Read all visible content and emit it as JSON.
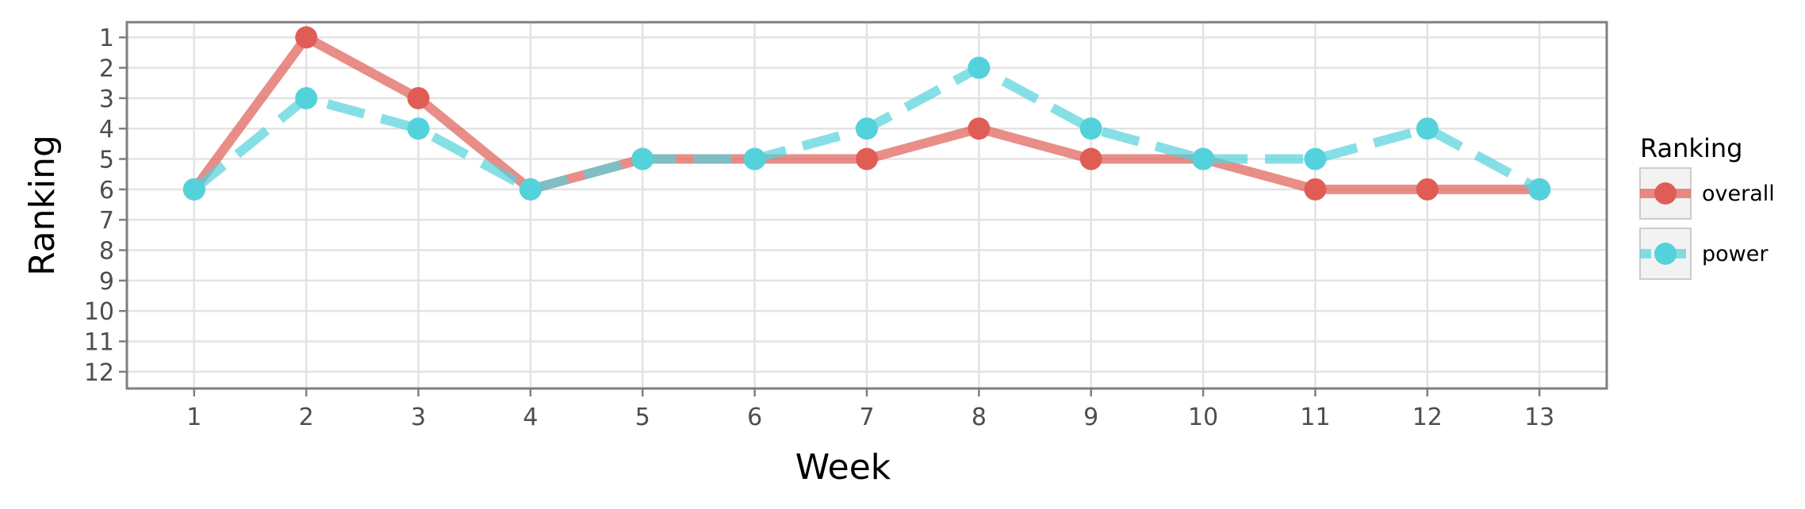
{
  "chart_data": {
    "type": "line",
    "xlabel": "Week",
    "ylabel": "Ranking",
    "x": [
      1,
      2,
      3,
      4,
      5,
      6,
      7,
      8,
      9,
      10,
      11,
      12,
      13
    ],
    "xlim": [
      0.4,
      13.6
    ],
    "ylim": [
      12.55,
      0.5
    ],
    "y_reversed": true,
    "yticks": [
      1,
      2,
      3,
      4,
      5,
      6,
      7,
      8,
      9,
      10,
      11,
      12
    ],
    "grid": true,
    "legend": {
      "title": "Ranking",
      "position": "right"
    },
    "series": [
      {
        "name": "overall",
        "color": "#E05D56",
        "line_style": "solid",
        "values": [
          6,
          1,
          3,
          6,
          5,
          5,
          5,
          4,
          5,
          5,
          6,
          6,
          6
        ]
      },
      {
        "name": "power",
        "color": "#54D2DC",
        "line_style": "dashed",
        "values": [
          6,
          3,
          4,
          6,
          5,
          5,
          4,
          2,
          4,
          5,
          5,
          4,
          6
        ]
      }
    ]
  }
}
